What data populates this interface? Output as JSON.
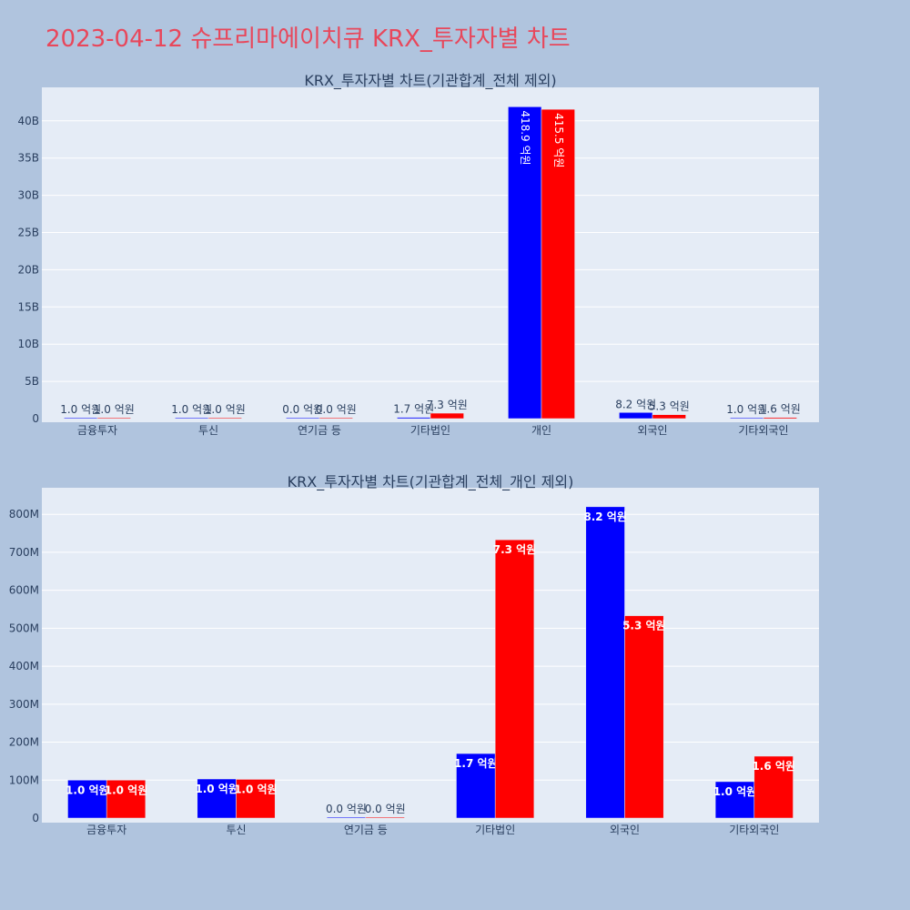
{
  "title": "2023-04-12 슈프리마에이치큐 KRX_투자자별 차트",
  "colors": {
    "page_bg": "#b0c4de",
    "plot_bg": "#e5ecf6",
    "grid": "#ffffff",
    "title": "#e8475b",
    "text": "#2a3f5f",
    "series_blue": "#0000ff",
    "series_red": "#ff0000"
  },
  "chart_data": [
    {
      "type": "bar",
      "title": "KRX_투자자별 차트(기관합계_전체 제외)",
      "categories": [
        "금융투자",
        "투신",
        "연기금 등",
        "기타법인",
        "개인",
        "외국인",
        "기타외국인"
      ],
      "series": [
        {
          "color": "#0000ff",
          "values": [
            100000000,
            100000000,
            0,
            170000000,
            41890000000,
            820000000,
            100000000
          ],
          "labels": [
            "1.0 억원",
            "1.0 억원",
            "0.0 억원",
            "1.7 억원",
            "418.9 억원",
            "8.2 억원",
            "1.0 억원"
          ]
        },
        {
          "color": "#ff0000",
          "values": [
            100000000,
            100000000,
            0,
            730000000,
            41550000000,
            530000000,
            160000000
          ],
          "labels": [
            "1.0 억원",
            "1.0 억원",
            "0.0 억원",
            "7.3 억원",
            "415.5 억원",
            "5.3 억원",
            "1.6 억원"
          ]
        }
      ],
      "ylim": [
        0,
        44500000000
      ],
      "yticks": [
        0,
        5000000000,
        10000000000,
        15000000000,
        20000000000,
        25000000000,
        30000000000,
        35000000000,
        40000000000
      ],
      "ytick_labels": [
        "0",
        "5B",
        "10B",
        "15B",
        "20B",
        "25B",
        "30B",
        "35B",
        "40B"
      ],
      "grid": true,
      "legend": "none"
    },
    {
      "type": "bar",
      "title": "KRX_투자자별 차트(기관합계_전체_개인 제외)",
      "categories": [
        "금융투자",
        "투신",
        "연기금 등",
        "기타법인",
        "외국인",
        "기타외국인"
      ],
      "series": [
        {
          "color": "#0000ff",
          "values": [
            100000000,
            103000000,
            1500000,
            170000000,
            820000000,
            96000000
          ],
          "labels": [
            "1.0 억원",
            "1.0 억원",
            "0.0 억원",
            "1.7 억원",
            "8.2 억원",
            "1.0 억원"
          ]
        },
        {
          "color": "#ff0000",
          "values": [
            100000000,
            102000000,
            1500000,
            733000000,
            533000000,
            163000000
          ],
          "labels": [
            "1.0 억원",
            "1.0 억원",
            "0.0 억원",
            "7.3 억원",
            "5.3 억원",
            "1.6 억원"
          ]
        }
      ],
      "ylim": [
        0,
        870000000
      ],
      "yticks": [
        0,
        100000000,
        200000000,
        300000000,
        400000000,
        500000000,
        600000000,
        700000000,
        800000000
      ],
      "ytick_labels": [
        "0",
        "100M",
        "200M",
        "300M",
        "400M",
        "500M",
        "600M",
        "700M",
        "800M"
      ],
      "grid": true,
      "legend": "none"
    }
  ]
}
